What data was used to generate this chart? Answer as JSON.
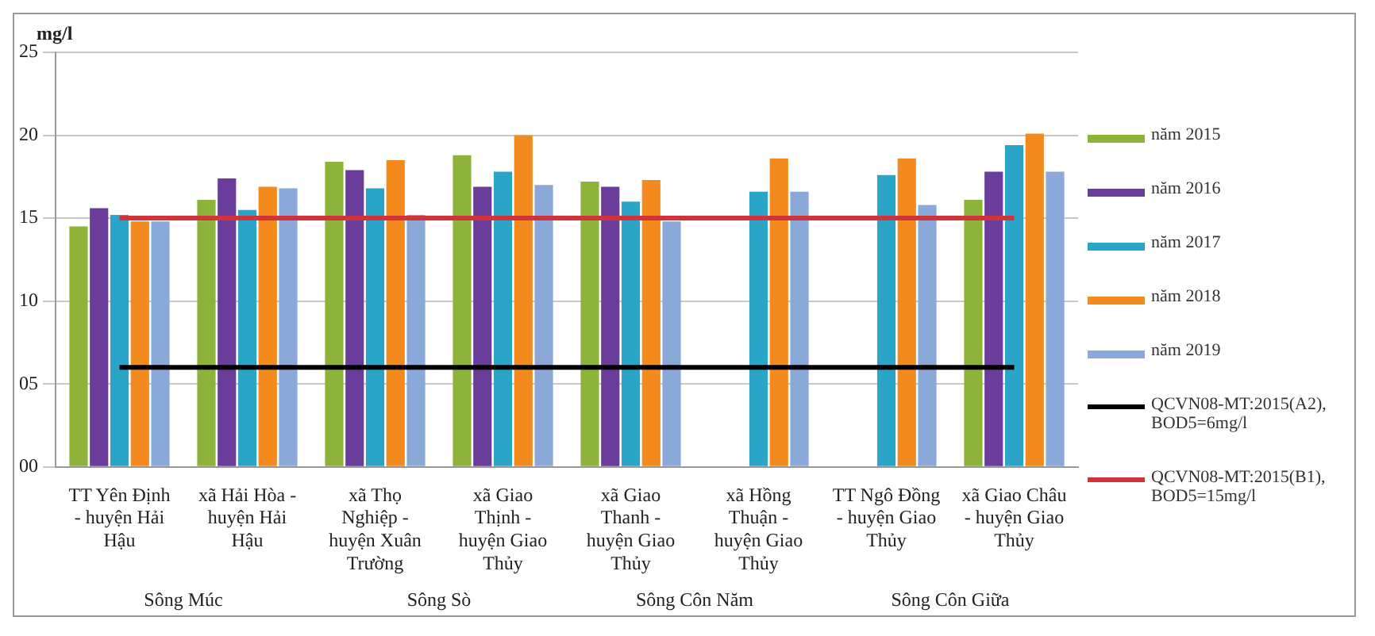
{
  "chart_data": {
    "type": "bar",
    "ylabel": "mg/l",
    "categories": [
      "TT Yên Định - huyện Hải Hậu",
      "xã Hải Hòa - huyện Hải Hậu",
      "xã Thọ Nghiệp - huyện Xuân Trường",
      "xã Giao Thịnh - huyện Giao Thủy",
      "xã Giao Thanh - huyện Giao Thủy",
      "xã Hồng Thuận - huyện Giao Thủy",
      "TT Ngô Đồng - huyện Giao Thủy",
      "xã Giao Châu - huyện Giao Thủy"
    ],
    "series": [
      {
        "name": "năm 2015",
        "color": "#8db33a",
        "values": [
          14.5,
          16.1,
          18.4,
          18.8,
          17.2,
          null,
          null,
          16.1
        ]
      },
      {
        "name": "năm 2016",
        "color": "#6a3d9a",
        "values": [
          15.6,
          17.4,
          17.9,
          16.9,
          16.9,
          null,
          null,
          17.8
        ]
      },
      {
        "name": "năm 2017",
        "color": "#2aa5c8",
        "values": [
          15.2,
          15.5,
          16.8,
          17.8,
          16.0,
          16.6,
          17.6,
          19.4
        ]
      },
      {
        "name": "năm 2018",
        "color": "#f28a1e",
        "values": [
          14.8,
          16.9,
          18.5,
          20.0,
          17.3,
          18.6,
          18.6,
          20.1
        ]
      },
      {
        "name": "năm 2019",
        "color": "#8aa8d8",
        "values": [
          14.8,
          16.8,
          15.2,
          17.0,
          14.8,
          16.6,
          15.8,
          17.8
        ]
      },
      {
        "name": "QCVN08-MT:2015(A2), BOD5=6mg/l",
        "type": "line",
        "color": "#000000",
        "values": [
          6,
          6,
          6,
          6,
          6,
          6,
          6,
          6
        ]
      },
      {
        "name": "QCVN08-MT:2015(B1), BOD5=15mg/l",
        "type": "line",
        "color": "#d0343a",
        "values": [
          15,
          15,
          15,
          15,
          15,
          15,
          15,
          15
        ]
      }
    ],
    "ylim": [
      0,
      25
    ],
    "yticks": [
      {
        "value": 0,
        "label": "00"
      },
      {
        "value": 5,
        "label": "05"
      },
      {
        "value": 10,
        "label": "10"
      },
      {
        "value": 15,
        "label": "15"
      },
      {
        "value": 20,
        "label": "20"
      },
      {
        "value": 25,
        "label": "25"
      }
    ],
    "grid": "y",
    "legend": "right",
    "marker": "none",
    "annotations": [
      "Sông Múc",
      "Sông Sò",
      "Sông Côn Năm",
      "Sông Côn Giữa"
    ]
  }
}
